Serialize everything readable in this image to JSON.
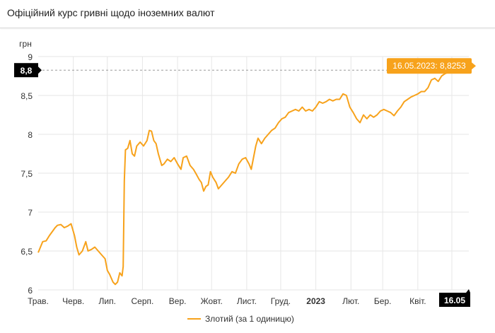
{
  "page": {
    "title": "Офіційний курс гривні щодо іноземних валют"
  },
  "colors": {
    "series": "#f7a21b",
    "tooltip_bg": "#f7a21b",
    "crosshair_label_bg": "#000000",
    "grid": "#e6e6e6"
  },
  "chart_data": {
    "type": "line",
    "title": "",
    "ylabel": "грн",
    "xlabel": "",
    "ylim": [
      6,
      9
    ],
    "x_start": "2022-05-01",
    "x_end": "2023-05-16",
    "yticks": [
      {
        "value": 6,
        "label": "6"
      },
      {
        "value": 6.5,
        "label": "6,5"
      },
      {
        "value": 7,
        "label": "7"
      },
      {
        "value": 7.5,
        "label": "7,5"
      },
      {
        "value": 8,
        "label": "8"
      },
      {
        "value": 8.5,
        "label": "8,5"
      },
      {
        "value": 9,
        "label": "9"
      }
    ],
    "xticks": [
      {
        "date": "2022-05-01",
        "label": "Трав."
      },
      {
        "date": "2022-06-01",
        "label": "Черв."
      },
      {
        "date": "2022-07-01",
        "label": "Лип."
      },
      {
        "date": "2022-08-01",
        "label": "Серп."
      },
      {
        "date": "2022-09-01",
        "label": "Вер."
      },
      {
        "date": "2022-10-01",
        "label": "Жовт."
      },
      {
        "date": "2022-11-01",
        "label": "Лист."
      },
      {
        "date": "2022-12-01",
        "label": "Груд."
      },
      {
        "date": "2023-01-01",
        "label": "2023"
      },
      {
        "date": "2023-02-01",
        "label": "Лют."
      },
      {
        "date": "2023-03-01",
        "label": "Бер."
      },
      {
        "date": "2023-04-01",
        "label": "Квіт."
      },
      {
        "date": "2023-05-01",
        "label": "Трав."
      }
    ],
    "grid": true,
    "legend_position": "bottom-center",
    "series": [
      {
        "name": "Злотий (за 1 одиницю)",
        "points": [
          [
            "2022-05-01",
            6.48
          ],
          [
            "2022-05-03",
            6.55
          ],
          [
            "2022-05-05",
            6.62
          ],
          [
            "2022-05-08",
            6.63
          ],
          [
            "2022-05-11",
            6.7
          ],
          [
            "2022-05-13",
            6.74
          ],
          [
            "2022-05-16",
            6.8
          ],
          [
            "2022-05-18",
            6.83
          ],
          [
            "2022-05-21",
            6.84
          ],
          [
            "2022-05-24",
            6.8
          ],
          [
            "2022-05-27",
            6.82
          ],
          [
            "2022-05-30",
            6.85
          ],
          [
            "2022-06-02",
            6.7
          ],
          [
            "2022-06-04",
            6.55
          ],
          [
            "2022-06-06",
            6.45
          ],
          [
            "2022-06-09",
            6.5
          ],
          [
            "2022-06-12",
            6.62
          ],
          [
            "2022-06-14",
            6.5
          ],
          [
            "2022-06-17",
            6.52
          ],
          [
            "2022-06-20",
            6.55
          ],
          [
            "2022-06-23",
            6.5
          ],
          [
            "2022-06-26",
            6.45
          ],
          [
            "2022-06-29",
            6.4
          ],
          [
            "2022-07-01",
            6.25
          ],
          [
            "2022-07-03",
            6.2
          ],
          [
            "2022-07-06",
            6.1
          ],
          [
            "2022-07-08",
            6.07
          ],
          [
            "2022-07-10",
            6.1
          ],
          [
            "2022-07-12",
            6.22
          ],
          [
            "2022-07-14",
            6.18
          ],
          [
            "2022-07-15",
            6.3
          ],
          [
            "2022-07-16",
            7.4
          ],
          [
            "2022-07-17",
            7.8
          ],
          [
            "2022-07-19",
            7.82
          ],
          [
            "2022-07-21",
            7.92
          ],
          [
            "2022-07-23",
            7.75
          ],
          [
            "2022-07-25",
            7.72
          ],
          [
            "2022-07-27",
            7.85
          ],
          [
            "2022-07-30",
            7.9
          ],
          [
            "2022-08-02",
            7.85
          ],
          [
            "2022-08-05",
            7.92
          ],
          [
            "2022-08-07",
            8.05
          ],
          [
            "2022-08-09",
            8.04
          ],
          [
            "2022-08-11",
            7.92
          ],
          [
            "2022-08-13",
            7.88
          ],
          [
            "2022-08-15",
            7.75
          ],
          [
            "2022-08-18",
            7.6
          ],
          [
            "2022-08-20",
            7.62
          ],
          [
            "2022-08-23",
            7.68
          ],
          [
            "2022-08-26",
            7.65
          ],
          [
            "2022-08-29",
            7.7
          ],
          [
            "2022-09-01",
            7.62
          ],
          [
            "2022-09-04",
            7.55
          ],
          [
            "2022-09-06",
            7.7
          ],
          [
            "2022-09-09",
            7.72
          ],
          [
            "2022-09-12",
            7.6
          ],
          [
            "2022-09-15",
            7.55
          ],
          [
            "2022-09-17",
            7.5
          ],
          [
            "2022-09-20",
            7.42
          ],
          [
            "2022-09-22",
            7.38
          ],
          [
            "2022-09-24",
            7.27
          ],
          [
            "2022-09-26",
            7.33
          ],
          [
            "2022-09-28",
            7.35
          ],
          [
            "2022-09-30",
            7.52
          ],
          [
            "2022-10-02",
            7.45
          ],
          [
            "2022-10-05",
            7.38
          ],
          [
            "2022-10-07",
            7.3
          ],
          [
            "2022-10-10",
            7.35
          ],
          [
            "2022-10-13",
            7.4
          ],
          [
            "2022-10-16",
            7.45
          ],
          [
            "2022-10-19",
            7.52
          ],
          [
            "2022-10-22",
            7.5
          ],
          [
            "2022-10-25",
            7.62
          ],
          [
            "2022-10-28",
            7.68
          ],
          [
            "2022-10-31",
            7.7
          ],
          [
            "2022-11-03",
            7.62
          ],
          [
            "2022-11-05",
            7.55
          ],
          [
            "2022-11-07",
            7.7
          ],
          [
            "2022-11-09",
            7.85
          ],
          [
            "2022-11-11",
            7.95
          ],
          [
            "2022-11-14",
            7.88
          ],
          [
            "2022-11-17",
            7.95
          ],
          [
            "2022-11-20",
            8.0
          ],
          [
            "2022-11-23",
            8.05
          ],
          [
            "2022-11-26",
            8.08
          ],
          [
            "2022-11-29",
            8.15
          ],
          [
            "2022-12-02",
            8.2
          ],
          [
            "2022-12-05",
            8.22
          ],
          [
            "2022-12-08",
            8.28
          ],
          [
            "2022-12-11",
            8.3
          ],
          [
            "2022-12-14",
            8.32
          ],
          [
            "2022-12-17",
            8.3
          ],
          [
            "2022-12-20",
            8.35
          ],
          [
            "2022-12-23",
            8.3
          ],
          [
            "2022-12-26",
            8.32
          ],
          [
            "2022-12-29",
            8.3
          ],
          [
            "2023-01-01",
            8.35
          ],
          [
            "2023-01-04",
            8.42
          ],
          [
            "2023-01-07",
            8.4
          ],
          [
            "2023-01-10",
            8.42
          ],
          [
            "2023-01-13",
            8.45
          ],
          [
            "2023-01-16",
            8.43
          ],
          [
            "2023-01-19",
            8.45
          ],
          [
            "2023-01-22",
            8.45
          ],
          [
            "2023-01-25",
            8.52
          ],
          [
            "2023-01-28",
            8.5
          ],
          [
            "2023-01-31",
            8.35
          ],
          [
            "2023-02-03",
            8.28
          ],
          [
            "2023-02-06",
            8.2
          ],
          [
            "2023-02-09",
            8.15
          ],
          [
            "2023-02-12",
            8.25
          ],
          [
            "2023-02-15",
            8.2
          ],
          [
            "2023-02-18",
            8.25
          ],
          [
            "2023-02-21",
            8.22
          ],
          [
            "2023-02-24",
            8.25
          ],
          [
            "2023-02-27",
            8.3
          ],
          [
            "2023-03-02",
            8.32
          ],
          [
            "2023-03-05",
            8.3
          ],
          [
            "2023-03-08",
            8.28
          ],
          [
            "2023-03-11",
            8.24
          ],
          [
            "2023-03-14",
            8.3
          ],
          [
            "2023-03-17",
            8.35
          ],
          [
            "2023-03-20",
            8.42
          ],
          [
            "2023-03-23",
            8.45
          ],
          [
            "2023-03-26",
            8.48
          ],
          [
            "2023-03-29",
            8.5
          ],
          [
            "2023-04-01",
            8.52
          ],
          [
            "2023-04-04",
            8.55
          ],
          [
            "2023-04-07",
            8.55
          ],
          [
            "2023-04-10",
            8.6
          ],
          [
            "2023-04-13",
            8.7
          ],
          [
            "2023-04-16",
            8.72
          ],
          [
            "2023-04-19",
            8.68
          ],
          [
            "2023-04-22",
            8.75
          ],
          [
            "2023-04-25",
            8.78
          ],
          [
            "2023-04-28",
            8.8
          ],
          [
            "2023-05-01",
            8.8
          ],
          [
            "2023-05-04",
            8.8
          ],
          [
            "2023-05-07",
            8.82
          ],
          [
            "2023-05-10",
            8.83
          ],
          [
            "2023-05-13",
            8.82
          ],
          [
            "2023-05-16",
            8.8253
          ]
        ]
      }
    ],
    "crosshair": {
      "y_label": "8,8",
      "x_label": "16.05",
      "tooltip": "16.05.2023: 8,8253"
    }
  }
}
